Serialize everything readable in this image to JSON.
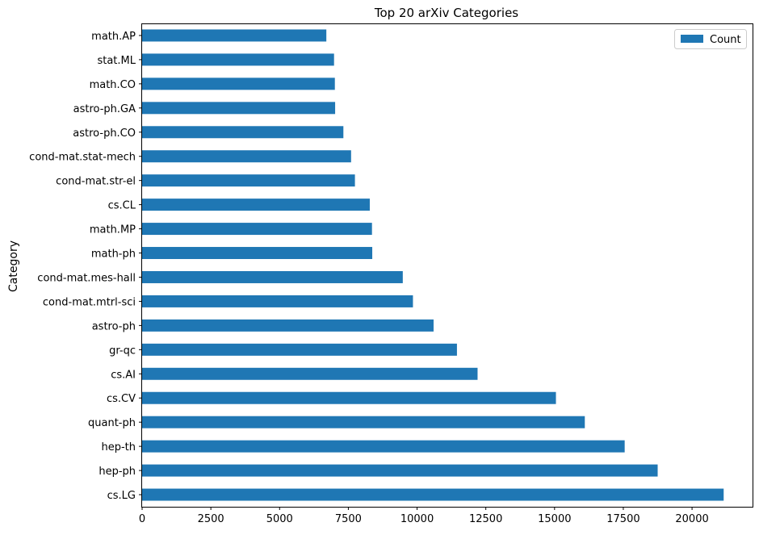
{
  "chart_data": {
    "type": "bar",
    "orientation": "horizontal",
    "title": "Top 20 arXiv Categories",
    "xlabel": "",
    "ylabel": "Category",
    "categories": [
      "cs.LG",
      "hep-ph",
      "hep-th",
      "quant-ph",
      "cs.CV",
      "cs.AI",
      "gr-qc",
      "astro-ph",
      "cond-mat.mtrl-sci",
      "cond-mat.mes-hall",
      "math-ph",
      "math.MP",
      "cs.CL",
      "cond-mat.str-el",
      "cond-mat.stat-mech",
      "astro-ph.CO",
      "astro-ph.GA",
      "math.CO",
      "stat.ML",
      "math.AP"
    ],
    "series": [
      {
        "name": "Count",
        "color": "#1f77b4",
        "values": [
          21150,
          18750,
          17550,
          16100,
          15050,
          12200,
          11450,
          10600,
          9850,
          9480,
          8370,
          8360,
          8280,
          7740,
          7600,
          7320,
          7020,
          7010,
          6980,
          6700
        ]
      }
    ],
    "xlim": [
      0,
      22200
    ],
    "xticks": [
      0,
      2500,
      5000,
      7500,
      10000,
      12500,
      15000,
      17500,
      20000
    ],
    "xtick_labels": [
      "0",
      "2500",
      "5000",
      "7500",
      "10000",
      "12500",
      "15000",
      "17500",
      "20000"
    ],
    "grid": false,
    "legend": {
      "position": "top-right",
      "entries": [
        "Count"
      ]
    }
  }
}
